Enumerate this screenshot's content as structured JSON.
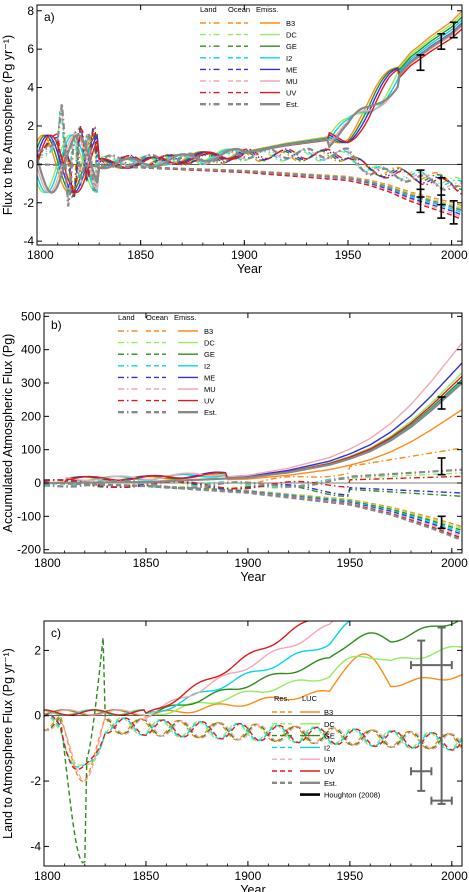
{
  "chart_data": [
    {
      "type": "line",
      "panel_label": "a)",
      "xlabel": "Year",
      "ylabel": "Flux to the Atmosphere (Pg yr⁻¹)",
      "xlim": [
        1800,
        2005
      ],
      "ylim": [
        -4.2,
        8.3
      ],
      "xticks": [
        "1800",
        "1850",
        "1900",
        "1950",
        "2000"
      ],
      "yticks": [
        "-4",
        "-2",
        "0",
        "2",
        "4",
        "6",
        "8"
      ],
      "legend_columns": [
        "Land",
        "Ocean",
        "Emiss."
      ],
      "series": [
        {
          "name": "B3",
          "color": "#ff8c1a"
        },
        {
          "name": "DC",
          "color": "#90ee60"
        },
        {
          "name": "GE",
          "color": "#2e8b1e"
        },
        {
          "name": "I2",
          "color": "#00d8e8"
        },
        {
          "name": "ME",
          "color": "#3030e0"
        },
        {
          "name": "MU",
          "color": "#f4a6b4"
        },
        {
          "name": "UV",
          "color": "#e01a1a"
        },
        {
          "name": "Est.",
          "color": "#888888"
        }
      ],
      "emissions": {
        "x": [
          1800,
          1850,
          1900,
          1920,
          1940,
          1950,
          1960,
          1970,
          1980,
          1990,
          2000,
          2005
        ],
        "values": [
          0.02,
          0.06,
          0.6,
          1.0,
          1.3,
          1.7,
          2.7,
          4.1,
          5.3,
          6.1,
          6.8,
          7.3
        ]
      },
      "ocean": {
        "x": [
          1800,
          1850,
          1900,
          1950,
          1960,
          1970,
          1980,
          1990,
          2000,
          2005
        ],
        "values": [
          0.0,
          -0.15,
          -0.35,
          -0.7,
          -0.9,
          -1.2,
          -1.6,
          -1.9,
          -2.2,
          -2.4
        ]
      },
      "land": {
        "x": [
          1800,
          1812,
          1815,
          1820,
          1830,
          1850,
          1885,
          1900,
          1950,
          1960,
          1980,
          2000,
          2005
        ],
        "values": [
          0.4,
          1.5,
          -0.8,
          0.5,
          0.2,
          0.2,
          0.3,
          0.5,
          0.5,
          -0.3,
          -0.6,
          -1.0,
          -1.2
        ]
      },
      "errorbars": [
        {
          "x": 1985,
          "y": 5.3,
          "err": 0.4
        },
        {
          "x": 1995,
          "y": 6.4,
          "err": 0.4
        },
        {
          "x": 2001,
          "y": 7.0,
          "err": 0.4
        },
        {
          "x": 1985,
          "y": -1.9,
          "err": 0.6
        },
        {
          "x": 1995,
          "y": -2.2,
          "err": 0.6
        },
        {
          "x": 2001,
          "y": -2.5,
          "err": 0.6
        },
        {
          "x": 1985,
          "y": -1.0,
          "err": 0.7
        },
        {
          "x": 1995,
          "y": -1.4,
          "err": 0.7
        }
      ]
    },
    {
      "type": "line",
      "panel_label": "b)",
      "xlabel": "Year",
      "ylabel": "Accumulated Atmospheric Flux (Pg)",
      "xlim": [
        1800,
        2005
      ],
      "ylim": [
        -210,
        510
      ],
      "xticks": [
        "1800",
        "1850",
        "1900",
        "1950",
        "2000"
      ],
      "yticks": [
        "-200",
        "-100",
        "0",
        "100",
        "200",
        "300",
        "400",
        "500"
      ],
      "legend_columns": [
        "Land",
        "Ocean",
        "Emiss."
      ],
      "series": [
        {
          "name": "B3",
          "color": "#ff8c1a",
          "final_emiss": 220,
          "final_land": 105
        },
        {
          "name": "DC",
          "color": "#90ee60",
          "final_emiss": 330,
          "final_land": 30
        },
        {
          "name": "GE",
          "color": "#2e8b1e",
          "final_emiss": 310,
          "final_land": -40
        },
        {
          "name": "I2",
          "color": "#00d8e8",
          "final_emiss": 305,
          "final_land": 40
        },
        {
          "name": "ME",
          "color": "#3030e0",
          "final_emiss": 360,
          "final_land": -30
        },
        {
          "name": "MU",
          "color": "#f4a6b4",
          "final_emiss": 420,
          "final_land": 40
        },
        {
          "name": "UV",
          "color": "#e01a1a",
          "final_emiss": 320,
          "final_land": 20
        },
        {
          "name": "Est.",
          "color": "#888888",
          "final_emiss": 300,
          "final_land": 40
        }
      ],
      "emissions": {
        "x": [
          1800,
          1850,
          1900,
          1920,
          1940,
          1950,
          1960,
          1970,
          1980,
          1990,
          2000,
          2005
        ],
        "values": [
          0,
          3,
          18,
          35,
          60,
          80,
          105,
          140,
          185,
          240,
          300,
          330
        ]
      },
      "ocean": {
        "x": [
          1800,
          1850,
          1900,
          1950,
          1970,
          1990,
          2005
        ],
        "values": [
          0,
          -8,
          -25,
          -55,
          -80,
          -115,
          -145
        ]
      },
      "errorbars": [
        {
          "x": 1995,
          "y": 240,
          "err": 18
        },
        {
          "x": 1995,
          "y": 50,
          "err": 25
        },
        {
          "x": 1995,
          "y": -118,
          "err": 18
        }
      ]
    },
    {
      "type": "line",
      "panel_label": "c)",
      "xlabel": "Year",
      "ylabel": "Land to Atmosphere Flux (Pg yr⁻¹)",
      "xlim": [
        1800,
        2005
      ],
      "ylim": [
        -4.6,
        2.9
      ],
      "xticks": [
        "1800",
        "1850",
        "1900",
        "1950",
        "2000"
      ],
      "yticks": [
        "-4",
        "-2",
        "0",
        "2"
      ],
      "legend_columns": [
        "Res.",
        "LUC"
      ],
      "series": [
        {
          "name": "B3",
          "color": "#ff8c1a"
        },
        {
          "name": "DC",
          "color": "#90ee60"
        },
        {
          "name": "GE",
          "color": "#2e8b1e"
        },
        {
          "name": "I2",
          "color": "#00d8e8"
        },
        {
          "name": "UM",
          "color": "#f4a6b4"
        },
        {
          "name": "UV",
          "color": "#e01a1a"
        },
        {
          "name": "Est.",
          "color": "#888888"
        },
        {
          "name": "Houghton (2008)",
          "color": "#000000"
        }
      ],
      "houghton": {
        "x": [
          1850,
          1880,
          1900,
          1920,
          1940,
          1950,
          1960,
          1970,
          1980,
          1990,
          2000,
          2005
        ],
        "values": [
          0.5,
          0.5,
          0.6,
          0.75,
          0.9,
          1.1,
          1.3,
          1.35,
          1.4,
          1.55,
          1.5,
          1.45
        ]
      },
      "errorbars": [
        {
          "x": 1985,
          "y": 0.0,
          "xerr": 0,
          "yerr": 2.3
        },
        {
          "x": 1995,
          "y": 0.0,
          "xerr": 0,
          "yerr": 2.7
        },
        {
          "x": 1985,
          "y": -1.7,
          "xerr": 5,
          "yerr": 0
        },
        {
          "x": 1995,
          "y": -2.6,
          "xerr": 5,
          "yerr": 0
        },
        {
          "x": 1990,
          "y": 1.55,
          "xerr": 10,
          "yerr": 0
        }
      ]
    }
  ]
}
